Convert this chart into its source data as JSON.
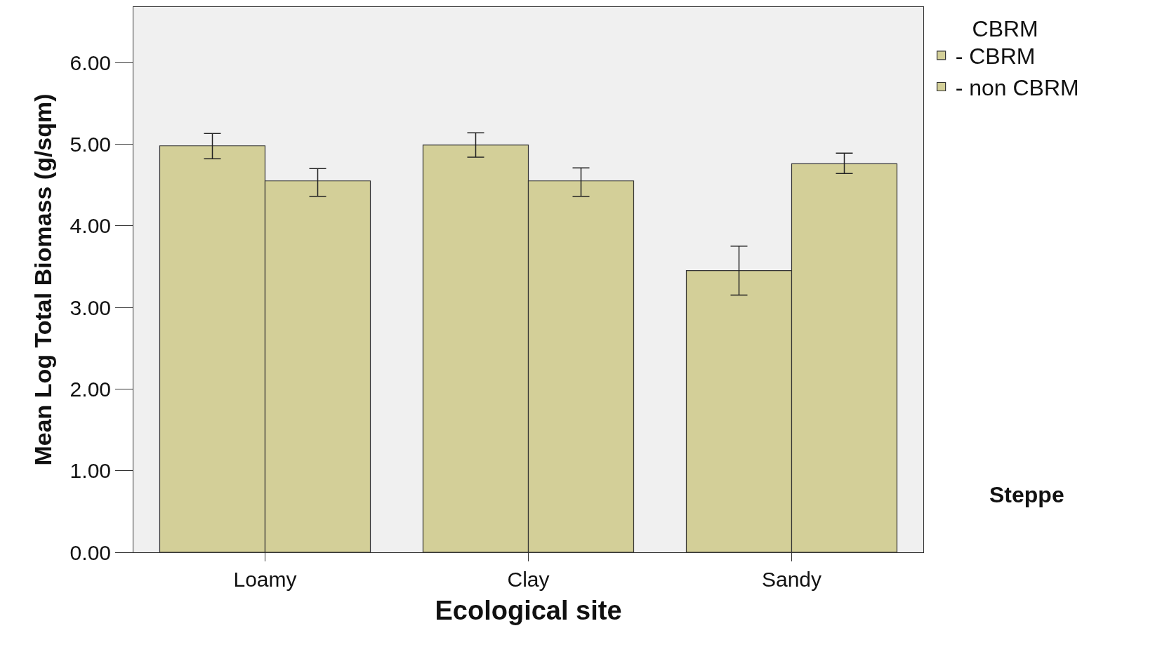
{
  "chart_data": {
    "type": "bar",
    "xlabel": "Ecological site",
    "ylabel": "Mean Log Total Biomass (g/sqm)",
    "legend_title": "CBRM",
    "legend": "top right",
    "categories": [
      "Loamy",
      "Clay",
      "Sandy"
    ],
    "series": [
      {
        "name": "- CBRM",
        "color": "#d3cf98",
        "values": [
          4.98,
          4.99,
          3.45
        ],
        "errors": [
          [
            4.82,
            5.13
          ],
          [
            4.84,
            5.14
          ],
          [
            3.15,
            3.75
          ]
        ]
      },
      {
        "name": "- non CBRM",
        "color": "#d3cf98",
        "values": [
          4.55,
          4.55,
          4.76
        ],
        "errors": [
          [
            4.36,
            4.7
          ],
          [
            4.36,
            4.71
          ],
          [
            4.64,
            4.89
          ]
        ]
      }
    ],
    "ylim": [
      0,
      6.68
    ],
    "yticks": [
      {
        "value": 0,
        "label": "0.00"
      },
      {
        "value": 1,
        "label": "1.00"
      },
      {
        "value": 2,
        "label": "2.00"
      },
      {
        "value": 3,
        "label": "3.00"
      },
      {
        "value": 4,
        "label": "4.00"
      },
      {
        "value": 5,
        "label": "5.00"
      },
      {
        "value": 6,
        "label": "6.00"
      }
    ],
    "grid": false,
    "annotations": [
      "Steppe"
    ]
  }
}
